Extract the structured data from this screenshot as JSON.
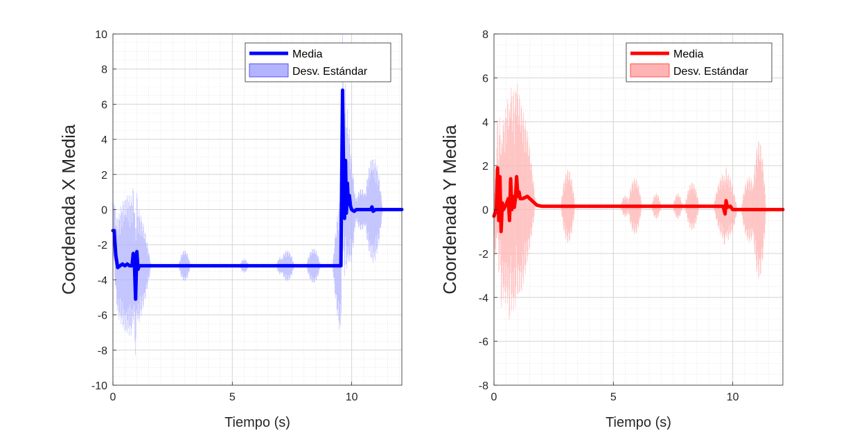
{
  "chart_data": [
    {
      "type": "line",
      "ylabel": "Coordenada X Media",
      "xlabel": "Tiempo (s)",
      "xlim": [
        0,
        12.1
      ],
      "ylim": [
        -10,
        10
      ],
      "xticks": [
        0,
        5,
        10
      ],
      "yticks": [
        -10,
        -8,
        -6,
        -4,
        -2,
        0,
        2,
        4,
        6,
        8,
        10
      ],
      "grid": true,
      "minor_grid": true,
      "legend_position": "top-right",
      "color": "#0000ff",
      "band_color": "#b3b3ff",
      "series": [
        {
          "name": "Media",
          "x": [
            0.0,
            0.05,
            0.12,
            0.2,
            0.3,
            0.4,
            0.5,
            0.6,
            0.7,
            0.8,
            0.85,
            0.9,
            0.95,
            1.0,
            1.05,
            1.1,
            1.2,
            1.5,
            2.0,
            3.0,
            4.0,
            5.0,
            6.0,
            7.0,
            8.0,
            9.0,
            9.55,
            9.62,
            9.66,
            9.7,
            9.74,
            9.78,
            9.82,
            9.86,
            9.9,
            9.95,
            10.0,
            10.1,
            10.2,
            10.5,
            10.8,
            10.85,
            10.9,
            11.0,
            11.5,
            12.1
          ],
          "y": [
            -1.2,
            -1.2,
            -2.6,
            -3.3,
            -3.2,
            -3.1,
            -3.2,
            -3.1,
            -3.2,
            -3.2,
            -2.5,
            -3.0,
            -5.1,
            -2.4,
            -3.4,
            -3.2,
            -3.2,
            -3.2,
            -3.2,
            -3.2,
            -3.2,
            -3.2,
            -3.2,
            -3.2,
            -3.2,
            -3.2,
            -3.2,
            6.8,
            2.0,
            -0.5,
            2.8,
            -0.2,
            1.5,
            0.3,
            0.8,
            0.2,
            0.0,
            -0.1,
            0.0,
            0.0,
            0.0,
            0.15,
            -0.1,
            0.0,
            0.0,
            0.0
          ]
        },
        {
          "name": "Desv. Estándar",
          "bursts": [
            {
              "center": 0.7,
              "half_width": 0.9,
              "amp": 4.0
            },
            {
              "center": 3.0,
              "half_width": 0.25,
              "amp": 0.9
            },
            {
              "center": 5.5,
              "half_width": 0.2,
              "amp": 0.4
            },
            {
              "center": 7.0,
              "half_width": 0.15,
              "amp": 0.5
            },
            {
              "center": 7.3,
              "half_width": 0.3,
              "amp": 0.9
            },
            {
              "center": 8.4,
              "half_width": 0.3,
              "amp": 1.0
            },
            {
              "center": 9.7,
              "half_width": 0.5,
              "amp": 4.5
            },
            {
              "center": 10.4,
              "half_width": 0.3,
              "amp": 1.2
            },
            {
              "center": 10.9,
              "half_width": 0.4,
              "amp": 3.0
            }
          ]
        }
      ]
    },
    {
      "type": "line",
      "ylabel": "Coordenada Y Media",
      "xlabel": "Tiempo (s)",
      "xlim": [
        0,
        12.1
      ],
      "ylim": [
        -8,
        8
      ],
      "xticks": [
        0,
        5,
        10
      ],
      "yticks": [
        -8,
        -6,
        -4,
        -2,
        0,
        2,
        4,
        6,
        8
      ],
      "grid": true,
      "minor_grid": true,
      "legend_position": "top-right",
      "color": "#ff0000",
      "band_color": "#ffb3b3",
      "series": [
        {
          "name": "Media",
          "x": [
            0.0,
            0.1,
            0.15,
            0.2,
            0.25,
            0.3,
            0.35,
            0.4,
            0.5,
            0.6,
            0.65,
            0.7,
            0.75,
            0.8,
            0.85,
            0.9,
            0.95,
            1.0,
            1.05,
            1.1,
            1.2,
            1.4,
            1.6,
            1.8,
            2.0,
            3.0,
            4.0,
            5.0,
            6.0,
            7.0,
            8.0,
            9.0,
            9.6,
            9.68,
            9.72,
            9.78,
            9.9,
            10.0,
            10.5,
            11.0,
            11.5,
            12.1
          ],
          "y": [
            -0.3,
            0.0,
            1.9,
            -0.5,
            1.5,
            -1.0,
            0.3,
            0.0,
            0.2,
            0.5,
            -0.5,
            1.4,
            0.0,
            0.6,
            0.1,
            0.5,
            1.5,
            0.6,
            0.8,
            0.5,
            0.5,
            0.6,
            0.4,
            0.2,
            0.15,
            0.15,
            0.15,
            0.15,
            0.15,
            0.15,
            0.15,
            0.15,
            0.15,
            -0.2,
            0.4,
            0.1,
            0.15,
            0.0,
            0.0,
            0.0,
            0.0,
            0.0
          ]
        },
        {
          "name": "Desv. Estándar",
          "bursts": [
            {
              "center": 0.8,
              "half_width": 0.95,
              "amp": 5.0
            },
            {
              "center": 3.1,
              "half_width": 0.3,
              "amp": 1.7
            },
            {
              "center": 5.5,
              "half_width": 0.2,
              "amp": 0.5
            },
            {
              "center": 5.9,
              "half_width": 0.3,
              "amp": 1.3
            },
            {
              "center": 6.8,
              "half_width": 0.2,
              "amp": 0.6
            },
            {
              "center": 7.7,
              "half_width": 0.2,
              "amp": 0.6
            },
            {
              "center": 8.3,
              "half_width": 0.3,
              "amp": 1.1
            },
            {
              "center": 9.7,
              "half_width": 0.5,
              "amp": 1.6
            },
            {
              "center": 10.7,
              "half_width": 0.35,
              "amp": 1.5
            },
            {
              "center": 11.1,
              "half_width": 0.3,
              "amp": 3.2
            }
          ]
        }
      ]
    }
  ]
}
